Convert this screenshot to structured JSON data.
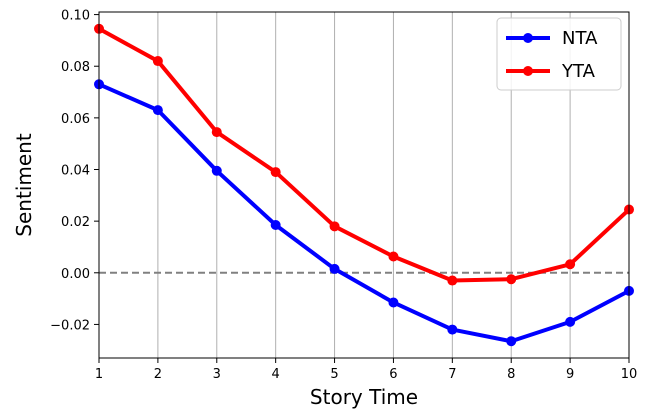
{
  "chart_data": {
    "type": "line",
    "xlabel": "Story Time",
    "ylabel": "Sentiment",
    "x": [
      1,
      2,
      3,
      4,
      5,
      6,
      7,
      8,
      9,
      10
    ],
    "xlim": [
      1,
      10
    ],
    "ylim": [
      -0.033,
      0.101
    ],
    "xticks": [
      "1",
      "2",
      "3",
      "4",
      "5",
      "6",
      "7",
      "8",
      "9",
      "10"
    ],
    "yticks": [
      {
        "value": 0.1,
        "label": "0.10"
      },
      {
        "value": 0.08,
        "label": "0.08"
      },
      {
        "value": 0.06,
        "label": "0.06"
      },
      {
        "value": 0.04,
        "label": "0.04"
      },
      {
        "value": 0.02,
        "label": "0.02"
      },
      {
        "value": 0.0,
        "label": "0.00"
      },
      {
        "value": -0.02,
        "label": "−0.02"
      }
    ],
    "grid": "vertical",
    "reference_line": {
      "y": 0,
      "style": "dashed",
      "color": "#808080"
    },
    "legend_position": "top-right",
    "series": [
      {
        "name": "NTA",
        "color": "#0000ff",
        "values": [
          0.073,
          0.063,
          0.0395,
          0.0185,
          0.0015,
          -0.0115,
          -0.022,
          -0.0265,
          -0.019,
          -0.007
        ]
      },
      {
        "name": "YTA",
        "color": "#ff0000",
        "values": [
          0.0945,
          0.082,
          0.0545,
          0.039,
          0.018,
          0.0063,
          -0.003,
          -0.0025,
          0.0033,
          0.0245
        ]
      }
    ]
  }
}
